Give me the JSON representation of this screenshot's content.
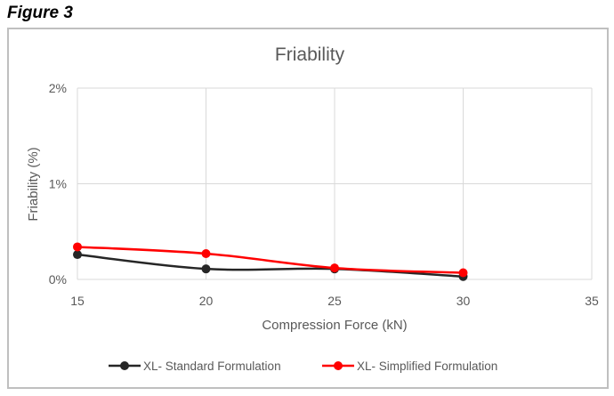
{
  "figure_label": "Figure 3",
  "chart_data": {
    "type": "line",
    "title": "Friability",
    "xlabel": "Compression Force (kN)",
    "ylabel": "Friability (%)",
    "xlim": [
      15,
      35
    ],
    "ylim": [
      0,
      2
    ],
    "x_ticks": [
      15,
      20,
      25,
      30,
      35
    ],
    "x_tick_labels": [
      "15",
      "20",
      "25",
      "30",
      "35"
    ],
    "y_ticks": [
      0,
      1,
      2
    ],
    "y_tick_labels": [
      "0%",
      "1%",
      "2%"
    ],
    "grid": true,
    "legend_position": "bottom",
    "smooth": true,
    "series": [
      {
        "name": "XL- Standard Formulation",
        "color": "#262626",
        "x": [
          15,
          20,
          25,
          30
        ],
        "y": [
          0.26,
          0.11,
          0.11,
          0.03
        ]
      },
      {
        "name": "XL- Simplified Formulation",
        "color": "#ff0000",
        "x": [
          15,
          20,
          25,
          30
        ],
        "y": [
          0.34,
          0.27,
          0.12,
          0.07
        ]
      }
    ]
  }
}
